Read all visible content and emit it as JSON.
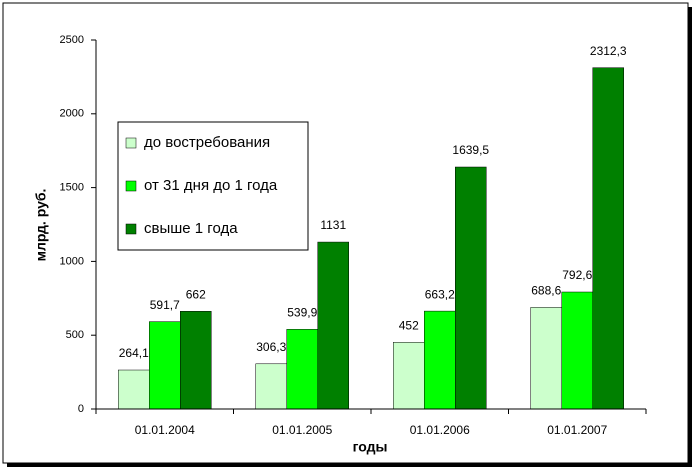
{
  "chart_data": {
    "type": "bar",
    "x_label": "годы",
    "y_label": "млрд. руб.",
    "categories": [
      "01.01.2004",
      "01.01.2005",
      "01.01.2006",
      "01.01.2007"
    ],
    "series": [
      {
        "name": "до востребования",
        "color": "#ccffcc",
        "values": [
          264.1,
          306.3,
          452,
          688.6
        ],
        "value_labels": [
          "264,1",
          "306,3",
          "452",
          "688,6"
        ]
      },
      {
        "name": "от 31 дня до 1 года",
        "color": "#00ff00",
        "values": [
          591.7,
          539.9,
          663.2,
          792.6
        ],
        "value_labels": [
          "591,7",
          "539,9",
          "663,2",
          "792,6"
        ]
      },
      {
        "name": "свыше 1 года",
        "color": "#008000",
        "values": [
          662,
          1131,
          1639.5,
          2312.3
        ],
        "value_labels": [
          "662",
          "1131",
          "1639,5",
          "2312,3"
        ]
      }
    ],
    "ylim": [
      0,
      2500
    ],
    "yticks": [
      0,
      500,
      1000,
      1500,
      2000,
      2500
    ]
  }
}
